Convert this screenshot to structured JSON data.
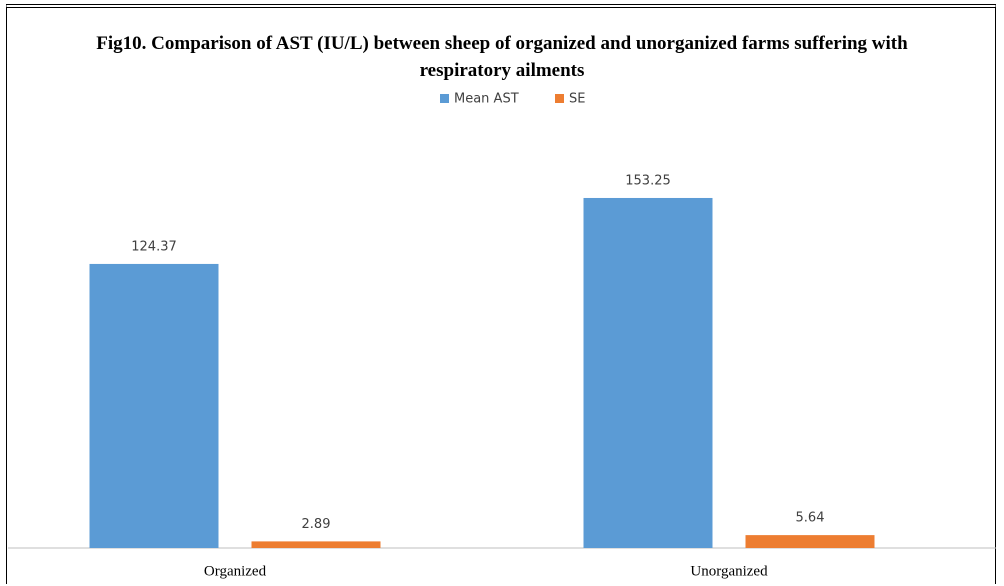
{
  "chart_data": {
    "type": "bar",
    "title": "Fig10. Comparison of AST (IU/L) between sheep of organized and unorganized farms suffering with respiratory ailments",
    "categories": [
      "Organized",
      "Unorganized"
    ],
    "series": [
      {
        "name": "Mean AST",
        "color": "#5b9bd5",
        "values": [
          124.37,
          153.25
        ]
      },
      {
        "name": "SE",
        "color": "#ed7d31",
        "values": [
          2.89,
          5.64
        ]
      }
    ],
    "legend": "top",
    "grid": false
  }
}
